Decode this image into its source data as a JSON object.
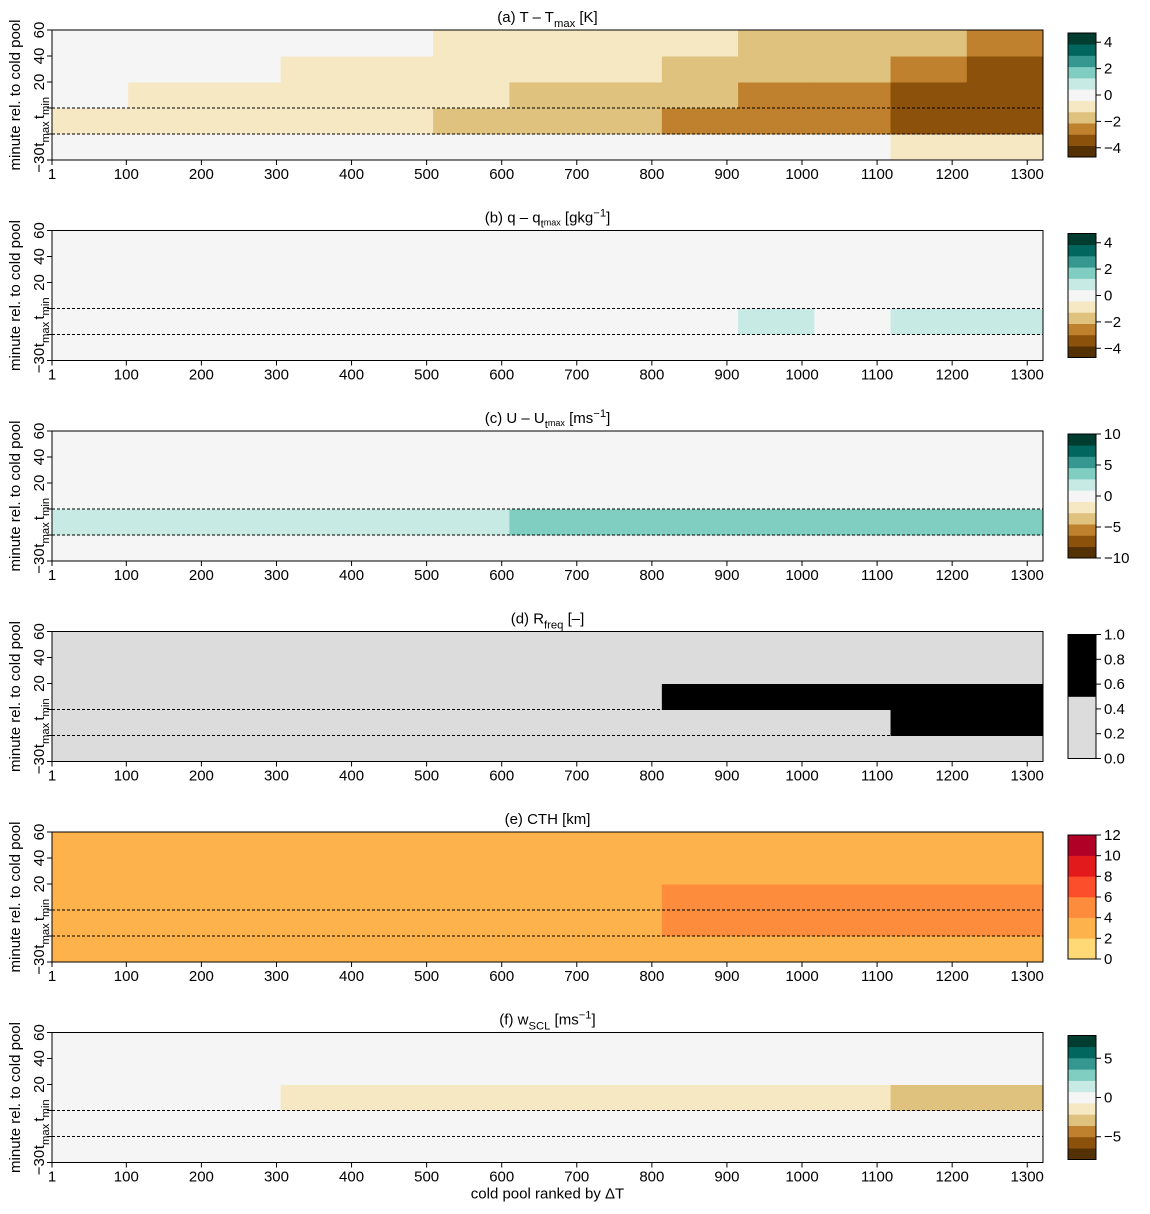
{
  "chart_data": [
    {
      "type": "heatmap",
      "title": [
        {
          "text": "(a) T – T"
        },
        {
          "text": "max",
          "shift": "sub"
        },
        {
          "text": " [K]"
        }
      ],
      "ylabel": "minute rel. to cold pool",
      "ycategories": [
        "−30",
        [
          {
            "text": "t"
          },
          {
            "text": "max",
            "shift": "sub"
          }
        ],
        [
          {
            "text": "t"
          },
          {
            "text": "min",
            "shift": "sub"
          }
        ],
        "20",
        "40",
        "60"
      ],
      "xlim": [
        1,
        1321
      ],
      "xticks": [
        1,
        100,
        200,
        300,
        400,
        500,
        600,
        700,
        800,
        900,
        1000,
        1100,
        1200,
        1300
      ],
      "values": [
        [
          0,
          0,
          0,
          0,
          0,
          0,
          -0.2,
          -0.2,
          -0.3,
          -0.3,
          -0.4,
          -0.5,
          -0.6
        ],
        [
          -0.5,
          -0.6,
          -0.7,
          -0.8,
          -1,
          -1.3,
          -1.6,
          -1.9,
          -2.2,
          -2.5,
          -2.8,
          -3.2,
          -3.8
        ],
        [
          -0.4,
          -0.5,
          -0.6,
          -0.7,
          -0.9,
          -1.2,
          -1.5,
          -1.8,
          -2.1,
          -2.4,
          -2.7,
          -3,
          -3.6
        ],
        [
          -0.3,
          -0.3,
          -0.4,
          -0.5,
          -0.6,
          -0.8,
          -1,
          -1.2,
          -1.5,
          -1.8,
          -2.1,
          -2.5,
          -3
        ],
        [
          -0.2,
          -0.2,
          -0.3,
          -0.3,
          -0.4,
          -0.5,
          -0.7,
          -0.9,
          -1.1,
          -1.4,
          -1.7,
          -2,
          -2.6
        ]
      ],
      "colorbar": {
        "lim": [
          -4.7,
          4.7
        ],
        "ticks": [
          {
            "value": -4,
            "label": "−4"
          },
          {
            "value": -2,
            "label": "−2"
          },
          0,
          2,
          4
        ],
        "colors": [
          "#543005",
          "#8c510a",
          "#bf812d",
          "#dfc27d",
          "#f6e8c3",
          "#f5f5f5",
          "#c7eae5",
          "#80cdc1",
          "#35978f",
          "#01665e",
          "#003c30"
        ]
      }
    },
    {
      "type": "heatmap",
      "title": [
        {
          "text": "(b) q – q"
        },
        {
          "text": "t",
          "shift": "sub"
        },
        {
          "text": "max",
          "shift": "subsub"
        },
        {
          "text": " [gkg"
        },
        {
          "text": "−1",
          "shift": "sup"
        },
        {
          "text": "]"
        }
      ],
      "ylabel": "minute rel. to cold pool",
      "ycategories": [
        "−30",
        [
          {
            "text": "t"
          },
          {
            "text": "max",
            "shift": "sub"
          }
        ],
        [
          {
            "text": "t"
          },
          {
            "text": "min",
            "shift": "sub"
          }
        ],
        "20",
        "40",
        "60"
      ],
      "xlim": [
        1,
        1321
      ],
      "xticks": [
        1,
        100,
        200,
        300,
        400,
        500,
        600,
        700,
        800,
        900,
        1000,
        1100,
        1200,
        1300
      ],
      "values": [
        [
          0,
          0,
          0,
          0.2,
          0,
          0,
          0,
          -0.2,
          0,
          0,
          0,
          0,
          0
        ],
        [
          0.3,
          0.3,
          0.4,
          0.4,
          0.3,
          0.4,
          0.4,
          0.3,
          0.4,
          0.5,
          0.4,
          0.5,
          0.6
        ],
        [
          0,
          0,
          0,
          0,
          0,
          0,
          0,
          0,
          0,
          0,
          0,
          0.2,
          0
        ],
        [
          0,
          0.2,
          0,
          0,
          -0.2,
          0,
          0,
          0,
          0,
          -0.2,
          0,
          0,
          0
        ],
        [
          0,
          0,
          -0.2,
          0,
          0,
          0,
          0.2,
          0,
          0,
          0,
          0,
          0,
          0
        ]
      ],
      "colorbar": {
        "lim": [
          -4.7,
          4.7
        ],
        "ticks": [
          {
            "value": -4,
            "label": "−4"
          },
          {
            "value": -2,
            "label": "−2"
          },
          0,
          2,
          4
        ],
        "colors": [
          "#543005",
          "#8c510a",
          "#bf812d",
          "#dfc27d",
          "#f6e8c3",
          "#f5f5f5",
          "#c7eae5",
          "#80cdc1",
          "#35978f",
          "#01665e",
          "#003c30"
        ]
      }
    },
    {
      "type": "heatmap",
      "title": [
        {
          "text": "(c) U – U"
        },
        {
          "text": "t",
          "shift": "sub"
        },
        {
          "text": "max",
          "shift": "subsub"
        },
        {
          "text": " [ms"
        },
        {
          "text": "−1",
          "shift": "sup"
        },
        {
          "text": "]"
        }
      ],
      "ylabel": "minute rel. to cold pool",
      "ycategories": [
        "−30",
        [
          {
            "text": "t"
          },
          {
            "text": "max",
            "shift": "sub"
          }
        ],
        [
          {
            "text": "t"
          },
          {
            "text": "min",
            "shift": "sub"
          }
        ],
        "20",
        "40",
        "60"
      ],
      "xlim": [
        1,
        1321
      ],
      "xticks": [
        1,
        100,
        200,
        300,
        400,
        500,
        600,
        700,
        800,
        900,
        1000,
        1100,
        1200,
        1300
      ],
      "values": [
        [
          0.5,
          0.5,
          0.5,
          0.5,
          0.5,
          0.5,
          0.5,
          0.5,
          0.5,
          0.5,
          0.5,
          0.5,
          0.5
        ],
        [
          2,
          2,
          2,
          2.5,
          2.5,
          2.5,
          3,
          3,
          3,
          3,
          3.5,
          4,
          3.5
        ],
        [
          0.5,
          0.5,
          0.5,
          0.5,
          0.5,
          0.5,
          0.5,
          0.5,
          0.5,
          0.5,
          0.5,
          0.5,
          0.5
        ],
        [
          0.3,
          0.3,
          0.3,
          0.3,
          0.3,
          0.3,
          0.3,
          0.3,
          0.3,
          0.3,
          0.3,
          0.3,
          0.3
        ],
        [
          0.5,
          0.5,
          0.5,
          0.5,
          0.5,
          0.5,
          0.5,
          0.5,
          0.5,
          0.5,
          0.5,
          0.5,
          0.5
        ]
      ],
      "colorbar": {
        "lim": [
          -10,
          10
        ],
        "ticks": [
          {
            "value": -10,
            "label": "−10"
          },
          {
            "value": -5,
            "label": "−5"
          },
          0,
          5,
          10
        ],
        "colors": [
          "#543005",
          "#8c510a",
          "#bf812d",
          "#dfc27d",
          "#f6e8c3",
          "#f5f5f5",
          "#c7eae5",
          "#80cdc1",
          "#35978f",
          "#01665e",
          "#003c30"
        ]
      }
    },
    {
      "type": "heatmap",
      "title": [
        {
          "text": "(d) R"
        },
        {
          "text": "freq",
          "shift": "sub"
        },
        {
          "text": " [–]"
        }
      ],
      "ylabel": "minute rel. to cold pool",
      "ycategories": [
        "−30",
        [
          {
            "text": "t"
          },
          {
            "text": "max",
            "shift": "sub"
          }
        ],
        [
          {
            "text": "t"
          },
          {
            "text": "min",
            "shift": "sub"
          }
        ],
        "20",
        "40",
        "60"
      ],
      "xlim": [
        1,
        1321
      ],
      "xticks": [
        1,
        100,
        200,
        300,
        400,
        500,
        600,
        700,
        800,
        900,
        1000,
        1100,
        1200,
        1300
      ],
      "values": [
        [
          0.1,
          0.1,
          0.15,
          0.1,
          0.1,
          0.15,
          0.15,
          0.15,
          0.2,
          0.2,
          0.2,
          0.2,
          0.2
        ],
        [
          0.2,
          0.25,
          0.25,
          0.3,
          0.3,
          0.35,
          0.35,
          0.4,
          0.4,
          0.45,
          0.45,
          0.5,
          0.55
        ],
        [
          0.25,
          0.3,
          0.3,
          0.35,
          0.35,
          0.4,
          0.45,
          0.45,
          0.5,
          0.5,
          0.55,
          0.6,
          0.65
        ],
        [
          0.1,
          0.15,
          0.15,
          0.15,
          0.15,
          0.2,
          0.2,
          0.2,
          0.25,
          0.25,
          0.3,
          0.3,
          0.35
        ],
        [
          0.1,
          0.1,
          0.1,
          0.15,
          0.15,
          0.15,
          0.2,
          0.2,
          0.2,
          0.25,
          0.25,
          0.3,
          0.3
        ]
      ],
      "colorbar": {
        "lim": [
          0,
          1
        ],
        "ticks": [
          {
            "value": 0,
            "label": "0.0"
          },
          0.2,
          0.4,
          0.6,
          0.8,
          {
            "value": 1,
            "label": "1.0"
          }
        ],
        "colors": [
          "#dcdcdc",
          "#000000"
        ]
      }
    },
    {
      "type": "heatmap",
      "title": [
        {
          "text": "(e) CTH [km]"
        }
      ],
      "ylabel": "minute rel. to cold pool",
      "ycategories": [
        "−30",
        [
          {
            "text": "t"
          },
          {
            "text": "max",
            "shift": "sub"
          }
        ],
        [
          {
            "text": "t"
          },
          {
            "text": "min",
            "shift": "sub"
          }
        ],
        "20",
        "40",
        "60"
      ],
      "xlim": [
        1,
        1321
      ],
      "xticks": [
        1,
        100,
        200,
        300,
        400,
        500,
        600,
        700,
        800,
        900,
        1000,
        1100,
        1200,
        1300
      ],
      "values": [
        [
          2.5,
          2.5,
          2.5,
          2.5,
          2.5,
          2.5,
          2.5,
          2.5,
          2.5,
          2.5,
          2.5,
          2.5,
          2.5
        ],
        [
          3,
          3,
          3,
          3,
          3,
          3.5,
          3.5,
          3.5,
          4,
          4,
          4,
          4.5,
          4.5
        ],
        [
          3,
          3,
          3,
          3,
          3,
          3.5,
          3.5,
          3.5,
          4,
          4,
          4,
          4.5,
          4.5
        ],
        [
          2.5,
          2.5,
          3,
          3,
          3,
          3,
          3,
          3,
          3,
          3.5,
          3.5,
          3.5,
          3.5
        ],
        [
          2.5,
          2.5,
          2.5,
          3,
          3,
          3,
          3,
          3,
          3,
          3,
          3.5,
          3.5,
          3.5
        ]
      ],
      "colorbar": {
        "lim": [
          0,
          12
        ],
        "ticks": [
          0,
          2,
          4,
          6,
          8,
          10,
          12
        ],
        "colors": [
          "#fed976",
          "#feb24c",
          "#fd8d3c",
          "#fc4e2a",
          "#e31a1c",
          "#b10026"
        ]
      }
    },
    {
      "type": "heatmap",
      "title": [
        {
          "text": "(f) w"
        },
        {
          "text": "SCL",
          "shift": "sub"
        },
        {
          "text": " [ms"
        },
        {
          "text": "−1",
          "shift": "sup"
        },
        {
          "text": "]"
        }
      ],
      "ylabel": "minute rel. to cold pool",
      "xlabel": "cold pool ranked by ΔT",
      "ycategories": [
        "−30",
        [
          {
            "text": "t"
          },
          {
            "text": "max",
            "shift": "sub"
          }
        ],
        [
          {
            "text": "t"
          },
          {
            "text": "min",
            "shift": "sub"
          }
        ],
        "20",
        "40",
        "60"
      ],
      "xlim": [
        1,
        1321
      ],
      "xticks": [
        1,
        100,
        200,
        300,
        400,
        500,
        600,
        700,
        800,
        900,
        1000,
        1100,
        1200,
        1300
      ],
      "values": [
        [
          0.5,
          0.5,
          0.5,
          0.5,
          0.5,
          0.5,
          0.5,
          0.5,
          0.5,
          0.5,
          0.5,
          0.5,
          0.5
        ],
        [
          0.5,
          0.5,
          0.5,
          0.5,
          0.5,
          0.5,
          0.5,
          0.5,
          0.5,
          0.5,
          0.5,
          0.5,
          0.5
        ],
        [
          -0.5,
          -0.5,
          -0.6,
          -0.8,
          -0.8,
          -1,
          -1.2,
          -1.4,
          -1.6,
          -1.8,
          -2,
          -2.5,
          -3
        ],
        [
          0.3,
          0.3,
          0.3,
          0.3,
          0.3,
          0.3,
          0.3,
          0.3,
          0.3,
          0.3,
          0.3,
          0.3,
          0.3
        ],
        [
          0.3,
          0.3,
          0.3,
          0.3,
          0.3,
          0.3,
          0.3,
          0.3,
          0.3,
          0.3,
          0.3,
          0.3,
          0.3
        ]
      ],
      "colorbar": {
        "lim": [
          -7.9,
          7.9
        ],
        "ticks": [
          {
            "value": -5,
            "label": "−5"
          },
          0,
          5
        ],
        "colors": [
          "#543005",
          "#8c510a",
          "#bf812d",
          "#dfc27d",
          "#f6e8c3",
          "#f5f5f5",
          "#c7eae5",
          "#80cdc1",
          "#35978f",
          "#01665e",
          "#003c30"
        ]
      }
    }
  ]
}
